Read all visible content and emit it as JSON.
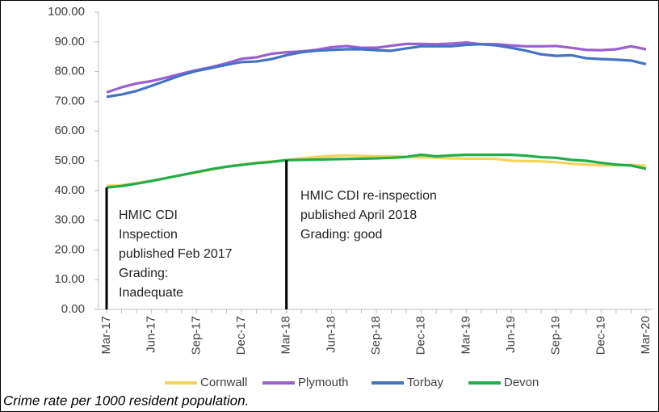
{
  "chart_data": {
    "type": "line",
    "categories": [
      "Mar-17",
      null,
      null,
      "Jun-17",
      null,
      null,
      "Sep-17",
      null,
      null,
      "Dec-17",
      null,
      null,
      "Mar-18",
      null,
      null,
      "Jun-18",
      null,
      null,
      "Sep-18",
      null,
      null,
      "Dec-18",
      null,
      null,
      "Mar-19",
      null,
      null,
      "Jun-19",
      null,
      null,
      "Sep-19",
      null,
      null,
      "Dec-19",
      null,
      null,
      "Mar-20"
    ],
    "series": [
      {
        "name": "Cornwall",
        "color": "#f7d25a",
        "values": [
          41.5,
          41.8,
          42.5,
          43.3,
          44.2,
          45.2,
          46,
          47,
          48,
          48.8,
          49.3,
          49.8,
          50.2,
          50.8,
          51.3,
          51.6,
          51.8,
          51.6,
          51.5,
          51.5,
          51.3,
          51.2,
          51,
          50.8,
          50.7,
          50.7,
          50.6,
          50,
          49.9,
          49.8,
          49.5,
          49,
          48.7,
          48.5,
          48.5,
          48.6,
          48.3
        ]
      },
      {
        "name": "Plymouth",
        "color": "#9c5fd0",
        "values": [
          73,
          74.7,
          76,
          76.8,
          78,
          79.3,
          80.5,
          81.5,
          82.8,
          84.3,
          84.8,
          86,
          86.5,
          86.8,
          87.3,
          88.2,
          88.6,
          88,
          88,
          88.7,
          89.3,
          89.3,
          89.2,
          89.4,
          89.8,
          89.2,
          89.2,
          88.8,
          88.5,
          88.5,
          88.6,
          88,
          87.3,
          87.2,
          87.5,
          88.5,
          87.5
        ]
      },
      {
        "name": "Torbay",
        "color": "#4472c4",
        "values": [
          71.5,
          72.3,
          73.5,
          75.2,
          77,
          78.8,
          80.2,
          81.2,
          82.3,
          83.2,
          83.4,
          84.2,
          85.5,
          86.5,
          87,
          87.3,
          87.5,
          87.5,
          87.2,
          87,
          87.8,
          88.5,
          88.5,
          88.5,
          89,
          89.2,
          88.8,
          88,
          87,
          85.8,
          85.3,
          85.5,
          84.5,
          84.2,
          84,
          83.7,
          82.5
        ]
      },
      {
        "name": "Devon",
        "color": "#21ad4b",
        "values": [
          41,
          41.5,
          42.3,
          43.2,
          44.2,
          45.2,
          46.2,
          47.2,
          48,
          48.6,
          49.2,
          49.6,
          50.2,
          50.3,
          50.4,
          50.5,
          50.6,
          50.7,
          50.8,
          51,
          51.3,
          52,
          51.5,
          51.8,
          52,
          52,
          52,
          52,
          51.7,
          51.2,
          51,
          50.3,
          50,
          49.3,
          48.7,
          48.4,
          47.3
        ]
      }
    ],
    "ylim": [
      0,
      100
    ],
    "yticks": [
      {
        "value": 0,
        "label": "0.00"
      },
      {
        "value": 10,
        "label": "10.00"
      },
      {
        "value": 20,
        "label": "20.00"
      },
      {
        "value": 30,
        "label": "30.00"
      },
      {
        "value": 40,
        "label": "40.00"
      },
      {
        "value": 50,
        "label": "50.00"
      },
      {
        "value": 60,
        "label": "60.00"
      },
      {
        "value": 70,
        "label": "70.00"
      },
      {
        "value": 80,
        "label": "80.00"
      },
      {
        "value": 90,
        "label": "90.00"
      },
      {
        "value": 100,
        "label": "100.00"
      }
    ],
    "annotations": [
      {
        "lines": [
          "HMIC CDI",
          "Inspection",
          "published Feb 2017",
          "Grading:",
          "Inadequate"
        ]
      },
      {
        "lines": [
          "HMIC CDI re-inspection",
          "published April 2018",
          "Grading: good"
        ]
      }
    ],
    "legend": "bottom",
    "caption": "Crime rate per 1000 resident population."
  }
}
